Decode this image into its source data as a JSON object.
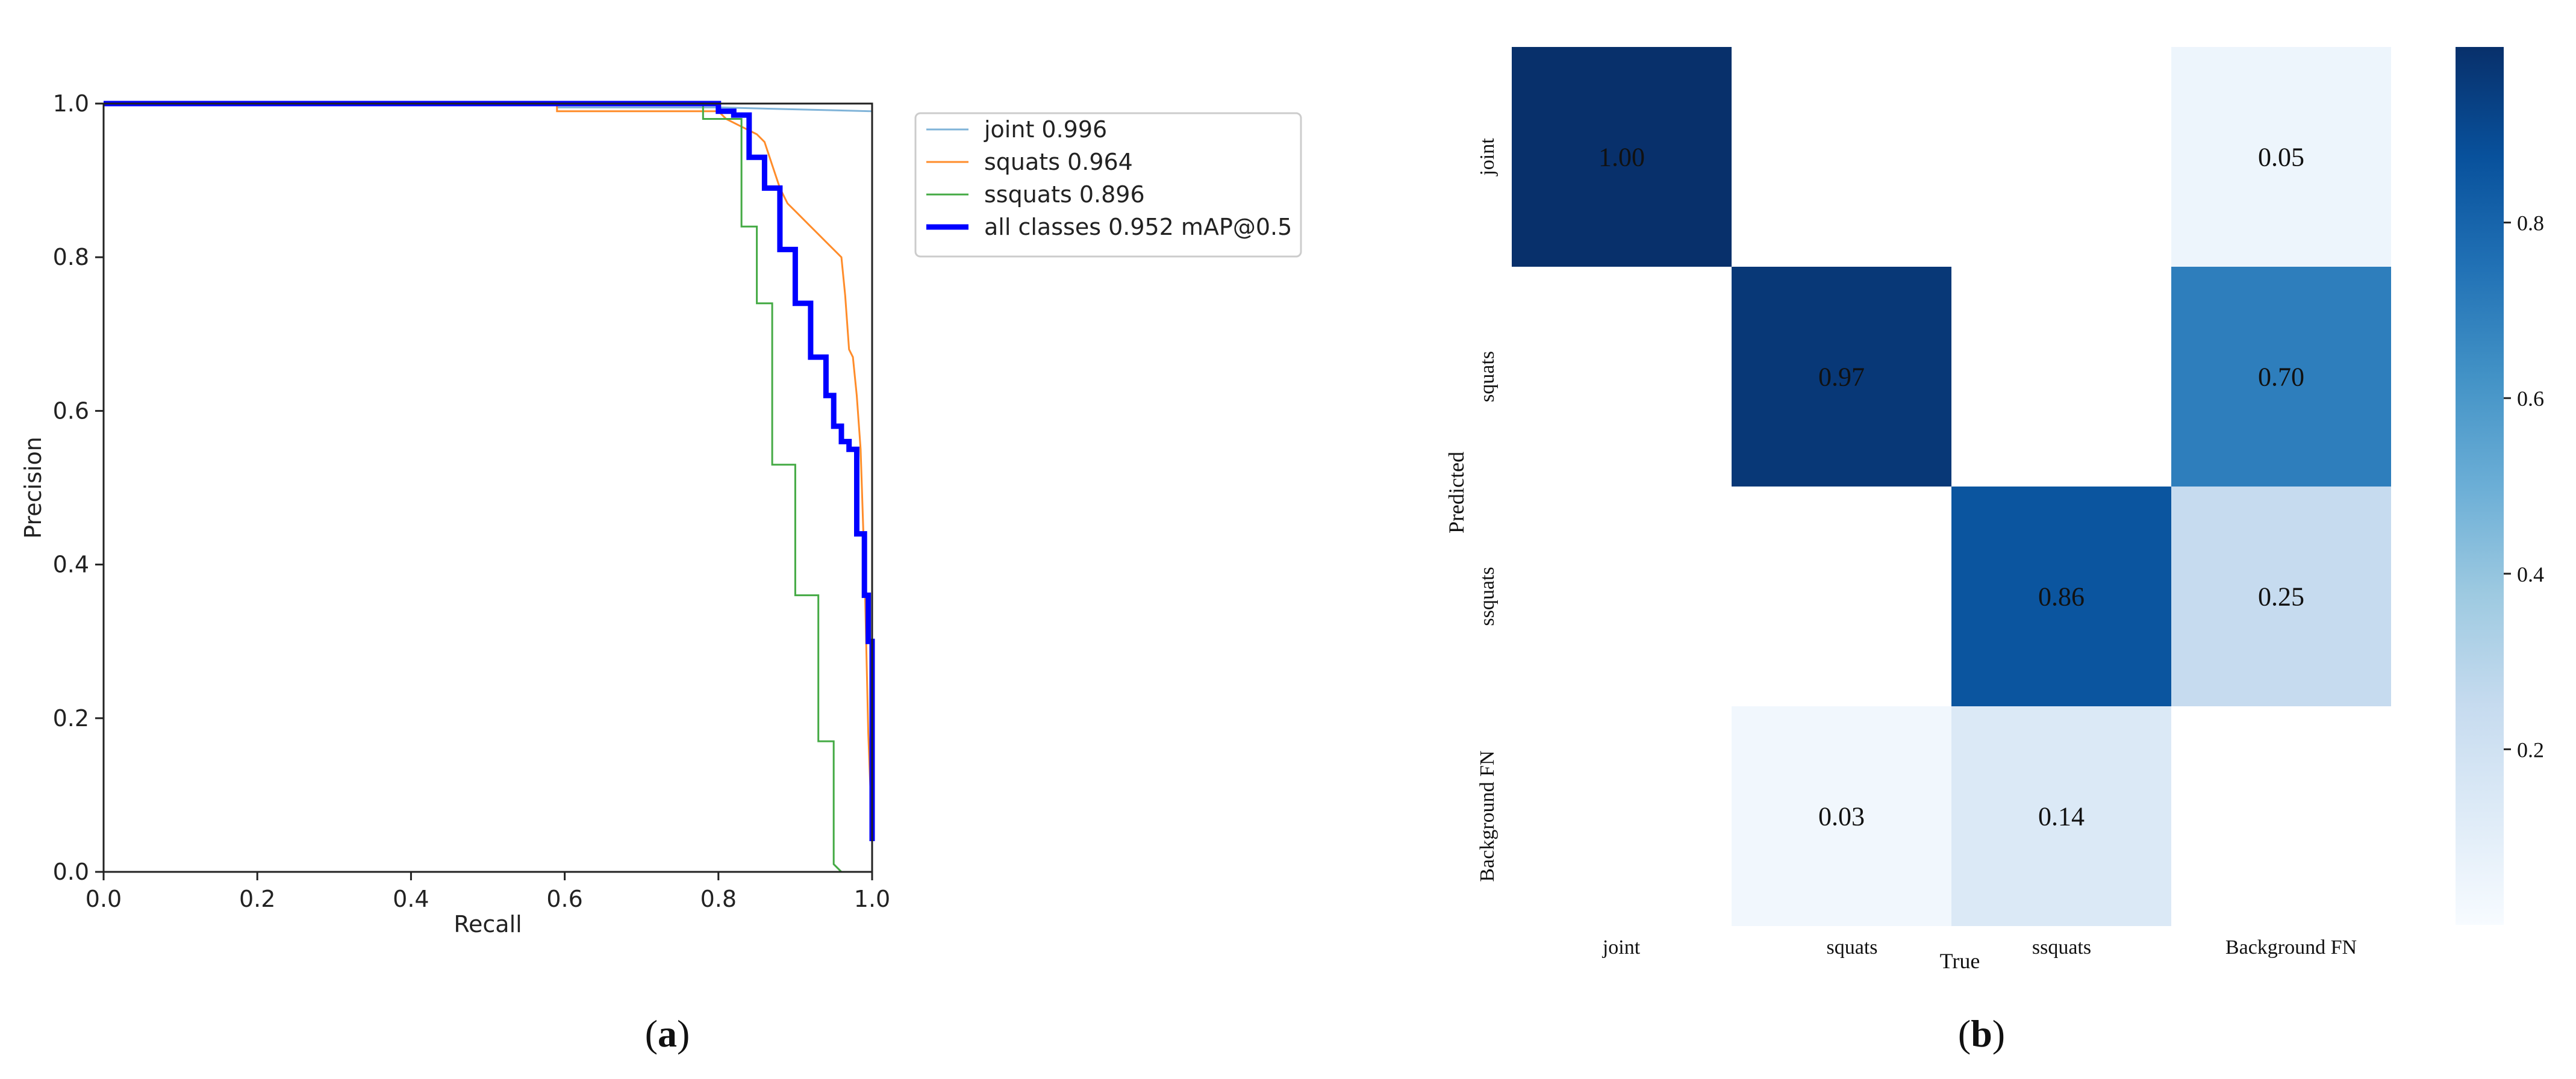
{
  "captions": {
    "a": {
      "open": "(",
      "letter": "a",
      "close": ")"
    },
    "b": {
      "open": "(",
      "letter": "b",
      "close": ")"
    }
  },
  "chart_data": [
    {
      "id": "pr_curve",
      "type": "line",
      "xlabel": "Recall",
      "ylabel": "Precision",
      "xlim": [
        0.0,
        1.0
      ],
      "ylim": [
        0.0,
        1.0
      ],
      "xticks": [
        "0.0",
        "0.2",
        "0.4",
        "0.6",
        "0.8",
        "1.0"
      ],
      "yticks": [
        "0.0",
        "0.2",
        "0.4",
        "0.6",
        "0.8",
        "1.0"
      ],
      "grid": false,
      "legend_position": "outside-upper-right",
      "series": [
        {
          "name": "joint 0.996",
          "color": "#7fb3d8",
          "x": [
            0.0,
            0.59,
            0.59,
            0.8,
            1.0,
            1.0
          ],
          "y": [
            1.0,
            1.0,
            0.995,
            0.995,
            0.99,
            0.0
          ]
        },
        {
          "name": "squats 0.964",
          "color": "#ff8c2a",
          "x": [
            0.0,
            0.59,
            0.59,
            0.8,
            0.81,
            0.83,
            0.85,
            0.86,
            0.87,
            0.88,
            0.89,
            0.9,
            0.91,
            0.92,
            0.93,
            0.94,
            0.95,
            0.96,
            0.965,
            0.97,
            0.975,
            0.98,
            0.985,
            0.99,
            0.995,
            1.0,
            1.0
          ],
          "y": [
            1.0,
            1.0,
            0.99,
            0.99,
            0.98,
            0.97,
            0.96,
            0.95,
            0.92,
            0.89,
            0.87,
            0.86,
            0.85,
            0.84,
            0.83,
            0.82,
            0.81,
            0.8,
            0.75,
            0.68,
            0.67,
            0.62,
            0.55,
            0.4,
            0.18,
            0.05,
            0.0
          ]
        },
        {
          "name": "ssquats 0.896",
          "color": "#44aa44",
          "x": [
            0.0,
            0.78,
            0.78,
            0.83,
            0.83,
            0.85,
            0.85,
            0.87,
            0.87,
            0.9,
            0.9,
            0.93,
            0.93,
            0.95,
            0.95,
            0.96,
            1.0
          ],
          "y": [
            1.0,
            1.0,
            0.98,
            0.98,
            0.84,
            0.84,
            0.74,
            0.74,
            0.53,
            0.53,
            0.36,
            0.36,
            0.17,
            0.17,
            0.01,
            0.0,
            0.0
          ]
        },
        {
          "name": "all classes 0.952 mAP@0.5",
          "color": "#0000ff",
          "x": [
            0.0,
            0.8,
            0.8,
            0.82,
            0.82,
            0.84,
            0.84,
            0.86,
            0.86,
            0.88,
            0.88,
            0.9,
            0.9,
            0.92,
            0.92,
            0.94,
            0.94,
            0.95,
            0.95,
            0.96,
            0.96,
            0.97,
            0.97,
            0.98,
            0.98,
            0.99,
            0.99,
            0.995,
            0.995,
            1.0,
            1.0
          ],
          "y": [
            1.0,
            1.0,
            0.99,
            0.99,
            0.985,
            0.985,
            0.93,
            0.93,
            0.89,
            0.89,
            0.81,
            0.81,
            0.74,
            0.74,
            0.67,
            0.67,
            0.62,
            0.62,
            0.58,
            0.58,
            0.56,
            0.56,
            0.55,
            0.55,
            0.44,
            0.44,
            0.36,
            0.36,
            0.3,
            0.3,
            0.04
          ]
        }
      ]
    },
    {
      "id": "confusion_matrix",
      "type": "heatmap",
      "xlabel": "True",
      "ylabel": "Predicted",
      "x_categories": [
        "joint",
        "squats",
        "ssquats",
        "Background FN"
      ],
      "y_categories": [
        "joint",
        "squats",
        "ssquats",
        "Background FN"
      ],
      "values": [
        [
          1.0,
          null,
          null,
          0.05
        ],
        [
          null,
          0.97,
          null,
          0.7
        ],
        [
          null,
          null,
          0.86,
          0.25
        ],
        [
          null,
          0.03,
          0.14,
          null
        ]
      ],
      "labels": [
        [
          "1.00",
          "",
          "",
          "0.05"
        ],
        [
          "",
          "0.97",
          "",
          "0.70"
        ],
        [
          "",
          "",
          "0.86",
          "0.25"
        ],
        [
          "",
          "0.03",
          "0.14",
          ""
        ]
      ],
      "colormap": "Blues",
      "vmin": 0.0,
      "vmax": 1.0,
      "colorbar_ticks": [
        0.2,
        0.4,
        0.6,
        0.8
      ],
      "colorbar_tick_labels": [
        "0.2",
        "0.4",
        "0.6",
        "0.8"
      ]
    }
  ]
}
